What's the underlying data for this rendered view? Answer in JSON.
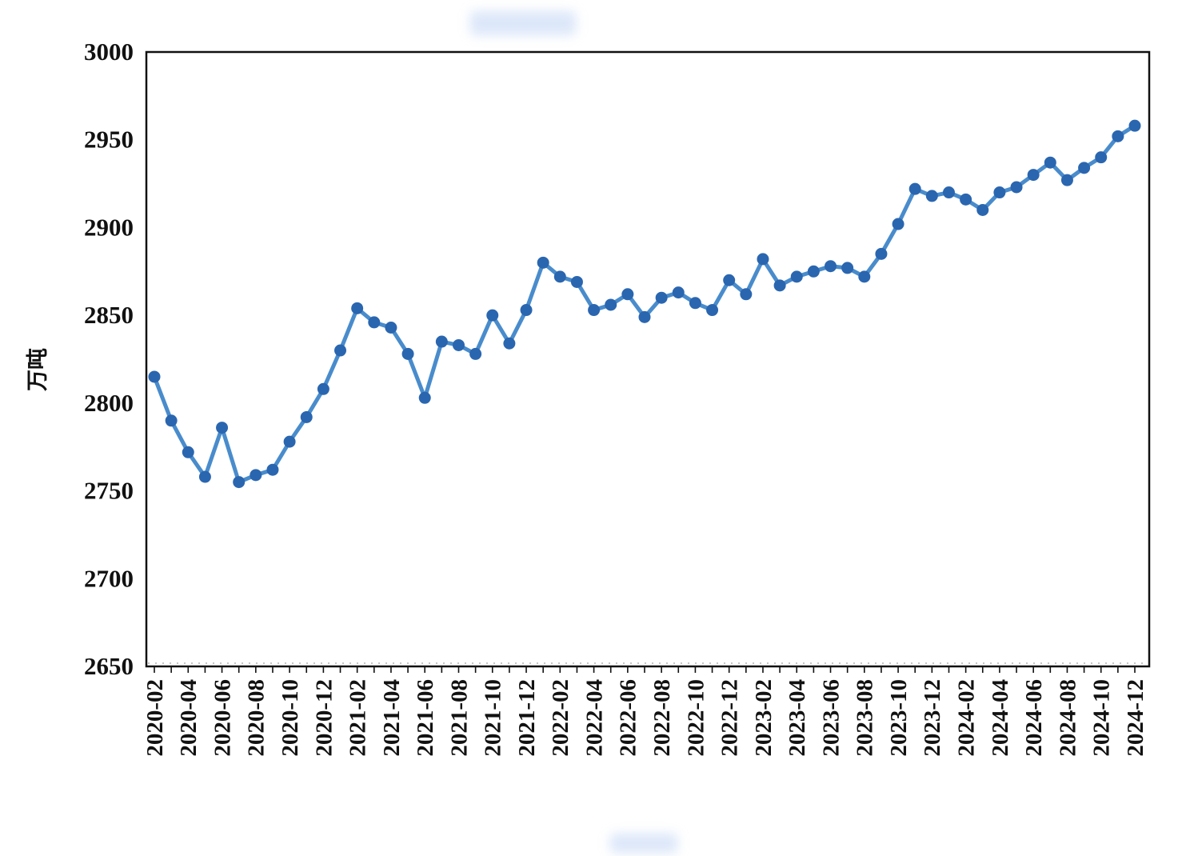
{
  "chart_data": {
    "type": "line",
    "title": "",
    "ylabel": "万吨",
    "xlabel": "",
    "legend_position": "none",
    "grid": false,
    "ylim": [
      2650,
      3000
    ],
    "y_ticks": [
      2650,
      2700,
      2750,
      2800,
      2850,
      2900,
      2950,
      3000
    ],
    "x_tick_step": 2,
    "x": [
      "2020-02",
      "2020-03",
      "2020-04",
      "2020-05",
      "2020-06",
      "2020-07",
      "2020-08",
      "2020-09",
      "2020-10",
      "2020-11",
      "2020-12",
      "2021-01",
      "2021-02",
      "2021-03",
      "2021-04",
      "2021-05",
      "2021-06",
      "2021-07",
      "2021-08",
      "2021-09",
      "2021-10",
      "2021-11",
      "2021-12",
      "2022-01",
      "2022-02",
      "2022-03",
      "2022-04",
      "2022-05",
      "2022-06",
      "2022-07",
      "2022-08",
      "2022-09",
      "2022-10",
      "2022-11",
      "2022-12",
      "2023-01",
      "2023-02",
      "2023-03",
      "2023-04",
      "2023-05",
      "2023-06",
      "2023-07",
      "2023-08",
      "2023-09",
      "2023-10",
      "2023-11",
      "2023-12",
      "2024-01",
      "2024-02",
      "2024-03",
      "2024-04",
      "2024-05",
      "2024-06",
      "2024-07",
      "2024-08",
      "2024-09",
      "2024-10",
      "2024-11",
      "2024-12"
    ],
    "values": [
      2815,
      2790,
      2772,
      2758,
      2786,
      2755,
      2759,
      2762,
      2778,
      2792,
      2808,
      2830,
      2854,
      2846,
      2843,
      2828,
      2803,
      2835,
      2833,
      2828,
      2850,
      2834,
      2853,
      2880,
      2872,
      2869,
      2853,
      2856,
      2862,
      2849,
      2860,
      2863,
      2857,
      2853,
      2870,
      2862,
      2882,
      2867,
      2872,
      2875,
      2878,
      2877,
      2872,
      2885,
      2902,
      2922,
      2918,
      2920,
      2916,
      2910,
      2920,
      2923,
      2930,
      2937,
      2927,
      2934,
      2940,
      2952,
      2958
    ],
    "line_color": "#3f86c9",
    "marker_color": "#2a66b0",
    "axis_color": "#111111"
  }
}
